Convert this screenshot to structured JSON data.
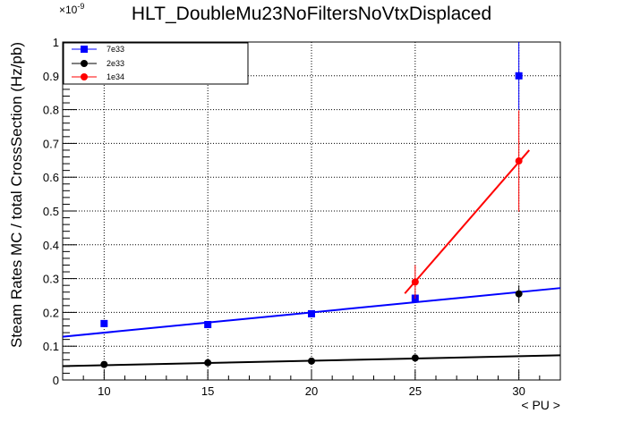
{
  "chart_data": {
    "type": "scatter",
    "title": "HLT_DoubleMu23NoFiltersNoVtxDisplaced",
    "xlabel": "< PU >",
    "ylabel": "Steam Rates MC / total CrossSection (Hz/pb)",
    "y_exponent_label": "×10",
    "y_exponent_power": "-9",
    "xlim": [
      8,
      32
    ],
    "ylim": [
      0,
      1.0
    ],
    "x_ticks": [
      10,
      15,
      20,
      25,
      30
    ],
    "x_tick_labels": [
      "10",
      "15",
      "20",
      "25",
      "30"
    ],
    "y_ticks": [
      0,
      0.1,
      0.2,
      0.3,
      0.4,
      0.5,
      0.6,
      0.7,
      0.8,
      0.9,
      1
    ],
    "y_tick_labels": [
      "0",
      "0.1",
      "0.2",
      "0.3",
      "0.4",
      "0.5",
      "0.6",
      "0.7",
      "0.8",
      "0.9",
      "1"
    ],
    "grid": true,
    "legend_position": "top-left",
    "series": [
      {
        "name": "7e33",
        "color": "#0000ff",
        "marker": "square",
        "points": [
          {
            "x": 10,
            "y": 0.167,
            "yerr": 0.004
          },
          {
            "x": 15,
            "y": 0.164,
            "yerr": 0.004
          },
          {
            "x": 20,
            "y": 0.196,
            "yerr": 0.005
          },
          {
            "x": 25,
            "y": 0.242,
            "yerr": 0.008
          },
          {
            "x": 30,
            "y": 0.9,
            "yerr": 0.1
          }
        ],
        "fit": {
          "x": [
            8,
            32
          ],
          "y": [
            0.128,
            0.272
          ]
        }
      },
      {
        "name": "2e33",
        "color": "#000000",
        "marker": "circle",
        "points": [
          {
            "x": 10,
            "y": 0.046,
            "yerr": 0.002
          },
          {
            "x": 15,
            "y": 0.051,
            "yerr": 0.002
          },
          {
            "x": 20,
            "y": 0.056,
            "yerr": 0.002
          },
          {
            "x": 25,
            "y": 0.065,
            "yerr": 0.003
          },
          {
            "x": 30,
            "y": 0.255,
            "yerr": 0.025
          }
        ],
        "fit": {
          "x": [
            8,
            32
          ],
          "y": [
            0.041,
            0.073
          ]
        }
      },
      {
        "name": "1e34",
        "color": "#ff0000",
        "marker": "circle",
        "points": [
          {
            "x": 25,
            "y": 0.29,
            "yerr": 0.05
          },
          {
            "x": 30,
            "y": 0.648,
            "yerr": 0.15
          }
        ],
        "fit": {
          "x": [
            24.5,
            30.5
          ],
          "y": [
            0.256,
            0.68
          ]
        }
      }
    ]
  }
}
